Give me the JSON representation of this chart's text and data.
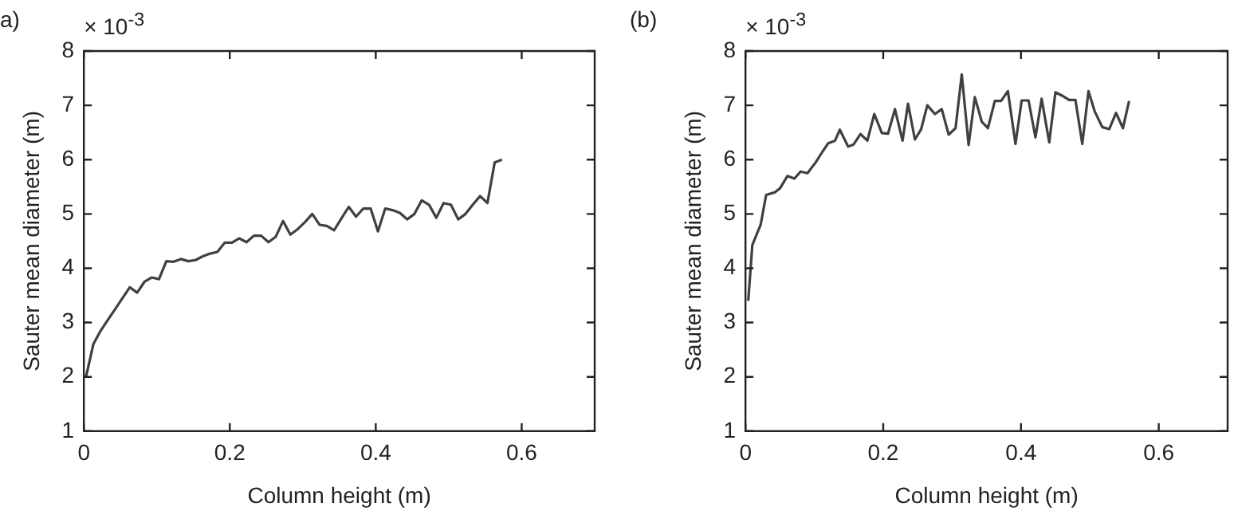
{
  "chart_data": [
    {
      "type": "line",
      "title": "a)",
      "xlabel": "Column height (m)",
      "ylabel": "Sauter mean diameter (m)",
      "annotations": [
        "× 10$^{-3}$"
      ],
      "xlim": [
        0,
        0.7
      ],
      "xticks": [
        0,
        0.2,
        0.4,
        0.6
      ],
      "ylim": [
        1,
        8
      ],
      "yticks": [
        1,
        2,
        3,
        4,
        5,
        6,
        7,
        8
      ],
      "grid": false,
      "legend": false,
      "marker": "none",
      "line_style": "solid",
      "series": [
        {
          "color": "#404040",
          "x": [
            0.003,
            0.013,
            0.023,
            0.033,
            0.043,
            0.053,
            0.063,
            0.073,
            0.083,
            0.093,
            0.103,
            0.113,
            0.123,
            0.133,
            0.143,
            0.153,
            0.163,
            0.173,
            0.183,
            0.193,
            0.203,
            0.213,
            0.223,
            0.233,
            0.243,
            0.253,
            0.263,
            0.273,
            0.283,
            0.293,
            0.303,
            0.313,
            0.323,
            0.333,
            0.343,
            0.353,
            0.363,
            0.373,
            0.383,
            0.393,
            0.403,
            0.413,
            0.423,
            0.433,
            0.443,
            0.453,
            0.463,
            0.473,
            0.483,
            0.493,
            0.503,
            0.513,
            0.523,
            0.533,
            0.543,
            0.553,
            0.563,
            0.573
          ],
          "values": [
            2.0,
            2.6,
            2.85,
            3.05,
            3.25,
            3.45,
            3.65,
            3.55,
            3.75,
            3.83,
            3.8,
            4.13,
            4.12,
            4.17,
            4.13,
            4.15,
            4.22,
            4.27,
            4.3,
            4.47,
            4.47,
            4.55,
            4.48,
            4.6,
            4.6,
            4.48,
            4.58,
            4.87,
            4.62,
            4.72,
            4.85,
            5.0,
            4.8,
            4.78,
            4.7,
            4.92,
            5.13,
            4.95,
            5.1,
            5.1,
            4.68,
            5.1,
            5.07,
            5.02,
            4.9,
            5.0,
            5.25,
            5.17,
            4.93,
            5.2,
            5.17,
            4.9,
            5.0,
            5.17,
            5.33,
            5.2,
            5.95,
            6.0
          ]
        }
      ]
    },
    {
      "type": "line",
      "title": "(b)",
      "xlabel": "Column height (m)",
      "ylabel": "Sauter mean diameter (m)",
      "annotations": [
        "× 10$^{-3}$"
      ],
      "xlim": [
        0,
        0.7
      ],
      "xticks": [
        0,
        0.2,
        0.4,
        0.6
      ],
      "ylim": [
        1,
        8
      ],
      "yticks": [
        1,
        2,
        3,
        4,
        5,
        6,
        7,
        8
      ],
      "grid": false,
      "legend": false,
      "marker": "none",
      "line_style": "solid",
      "series": [
        {
          "color": "#404040",
          "x": [
            0.004,
            0.01,
            0.022,
            0.03,
            0.043,
            0.05,
            0.061,
            0.071,
            0.08,
            0.09,
            0.102,
            0.112,
            0.12,
            0.13,
            0.137,
            0.149,
            0.157,
            0.167,
            0.177,
            0.187,
            0.198,
            0.207,
            0.217,
            0.228,
            0.236,
            0.246,
            0.255,
            0.264,
            0.275,
            0.285,
            0.295,
            0.305,
            0.314,
            0.324,
            0.333,
            0.343,
            0.352,
            0.362,
            0.371,
            0.381,
            0.392,
            0.401,
            0.411,
            0.421,
            0.43,
            0.441,
            0.45,
            0.461,
            0.47,
            0.479,
            0.489,
            0.498,
            0.507,
            0.518,
            0.528,
            0.538,
            0.548,
            0.557
          ],
          "values": [
            3.4,
            4.43,
            4.8,
            5.35,
            5.4,
            5.47,
            5.7,
            5.65,
            5.78,
            5.75,
            5.95,
            6.15,
            6.3,
            6.35,
            6.55,
            6.24,
            6.28,
            6.47,
            6.35,
            6.84,
            6.49,
            6.48,
            6.93,
            6.35,
            7.03,
            6.37,
            6.56,
            7.0,
            6.84,
            6.93,
            6.46,
            6.58,
            7.57,
            6.27,
            7.15,
            6.7,
            6.58,
            7.08,
            7.08,
            7.26,
            6.29,
            7.09,
            7.09,
            6.41,
            7.12,
            6.32,
            7.24,
            7.17,
            7.1,
            7.1,
            6.29,
            7.26,
            6.89,
            6.6,
            6.56,
            6.86,
            6.58,
            7.08
          ]
        }
      ]
    }
  ]
}
